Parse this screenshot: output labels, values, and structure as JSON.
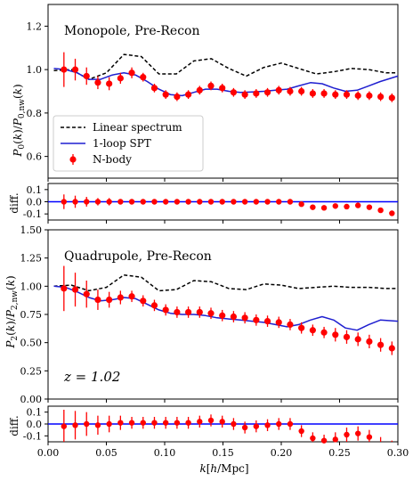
{
  "colors": {
    "linear": "#000000",
    "spt": "#1f1fd0",
    "nbody": "#ff0000",
    "zero_line": "#0000ff"
  },
  "x_label": "k[h/Mpc]",
  "x_ticks": [
    0.0,
    0.05,
    0.1,
    0.15,
    0.2,
    0.25,
    0.3
  ],
  "x_tick_labels": [
    "0.00",
    "0.05",
    "0.10",
    "0.15",
    "0.20",
    "0.25",
    "0.30"
  ],
  "legend": {
    "placement": "lower-left of monopole panel",
    "linear": "Linear spectrum",
    "spt": "1-loop SPT",
    "nbody": "N-body"
  },
  "chart_data": [
    {
      "type": "line",
      "title": "Monopole, Pre-Recon",
      "ylabel": "P_0(k)/P_0,nw(k)",
      "xlim": [
        0,
        0.3
      ],
      "ylim": [
        0.5,
        1.3
      ],
      "ytick_labels": [
        "0.6",
        "0.8",
        "1.0",
        "1.2"
      ],
      "yticks": [
        0.6,
        0.8,
        1.0,
        1.2
      ],
      "series": [
        {
          "name": "Linear spectrum",
          "x": [
            0.005,
            0.02,
            0.035,
            0.05,
            0.065,
            0.08,
            0.095,
            0.11,
            0.125,
            0.14,
            0.155,
            0.17,
            0.185,
            0.2,
            0.215,
            0.23,
            0.245,
            0.26,
            0.275,
            0.29,
            0.3
          ],
          "values": [
            0.995,
            1.0,
            0.955,
            0.985,
            1.07,
            1.06,
            0.98,
            0.98,
            1.04,
            1.05,
            1.005,
            0.97,
            1.01,
            1.03,
            1.005,
            0.98,
            0.99,
            1.005,
            1.0,
            0.985,
            0.985
          ]
        },
        {
          "name": "1-loop SPT",
          "x": [
            0.005,
            0.015,
            0.025,
            0.035,
            0.045,
            0.055,
            0.065,
            0.075,
            0.085,
            0.095,
            0.105,
            0.115,
            0.125,
            0.135,
            0.145,
            0.155,
            0.165,
            0.175,
            0.185,
            0.195,
            0.205,
            0.215,
            0.225,
            0.235,
            0.245,
            0.255,
            0.265,
            0.275,
            0.285,
            0.3
          ],
          "values": [
            1.005,
            1.0,
            0.985,
            0.955,
            0.955,
            0.975,
            0.985,
            0.975,
            0.945,
            0.91,
            0.885,
            0.88,
            0.895,
            0.91,
            0.91,
            0.9,
            0.895,
            0.897,
            0.9,
            0.905,
            0.91,
            0.925,
            0.94,
            0.935,
            0.915,
            0.9,
            0.905,
            0.925,
            0.945,
            0.97
          ]
        },
        {
          "name": "N-body",
          "x": [
            0.0136,
            0.0233,
            0.033,
            0.0427,
            0.0524,
            0.0621,
            0.0718,
            0.0815,
            0.0912,
            0.1009,
            0.1106,
            0.1203,
            0.13,
            0.1397,
            0.1494,
            0.1591,
            0.1688,
            0.1785,
            0.1882,
            0.1979,
            0.2076,
            0.2173,
            0.227,
            0.2367,
            0.2464,
            0.2561,
            0.2658,
            0.2755,
            0.2852,
            0.2949
          ],
          "values": [
            1.0,
            1.0,
            0.97,
            0.94,
            0.935,
            0.96,
            0.985,
            0.965,
            0.915,
            0.885,
            0.875,
            0.885,
            0.905,
            0.925,
            0.915,
            0.895,
            0.885,
            0.89,
            0.895,
            0.905,
            0.9,
            0.9,
            0.89,
            0.89,
            0.885,
            0.885,
            0.88,
            0.88,
            0.875,
            0.87
          ],
          "errors": [
            0.08,
            0.05,
            0.04,
            0.03,
            0.03,
            0.025,
            0.025,
            0.02,
            0.02,
            0.02,
            0.02,
            0.02,
            0.02,
            0.02,
            0.02,
            0.02,
            0.02,
            0.02,
            0.02,
            0.02,
            0.02,
            0.02,
            0.02,
            0.02,
            0.02,
            0.02,
            0.02,
            0.02,
            0.02,
            0.02
          ]
        }
      ]
    },
    {
      "type": "scatter",
      "title": "",
      "ylabel": "diff.",
      "xlim": [
        0,
        0.3
      ],
      "ylim": [
        -0.15,
        0.15
      ],
      "ytick_labels": [
        "-0.1",
        "0.0",
        "0.1"
      ],
      "yticks": [
        -0.1,
        0.0,
        0.1
      ],
      "x": [
        0.0136,
        0.0233,
        0.033,
        0.0427,
        0.0524,
        0.0621,
        0.0718,
        0.0815,
        0.0912,
        0.1009,
        0.1106,
        0.1203,
        0.13,
        0.1397,
        0.1494,
        0.1591,
        0.1688,
        0.1785,
        0.1882,
        0.1979,
        0.2076,
        0.2173,
        0.227,
        0.2367,
        0.2464,
        0.2561,
        0.2658,
        0.2755,
        0.2852,
        0.2949
      ],
      "values": [
        0.0,
        0.0,
        0.0,
        0.0,
        0.0,
        0.0,
        0.0,
        0.0,
        0.0,
        0.0,
        0.0,
        0.0,
        0.0,
        0.0,
        0.0,
        0.0,
        0.0,
        0.0,
        0.0,
        0.0,
        0.0,
        -0.02,
        -0.045,
        -0.05,
        -0.035,
        -0.04,
        -0.03,
        -0.045,
        -0.07,
        -0.095
      ],
      "errors": [
        0.06,
        0.05,
        0.04,
        0.03,
        0.03,
        0.02,
        0.02,
        0.02,
        0.02,
        0.02,
        0.02,
        0.02,
        0.02,
        0.02,
        0.02,
        0.02,
        0.02,
        0.02,
        0.02,
        0.02,
        0.02,
        0.02,
        0.02,
        0.02,
        0.02,
        0.02,
        0.02,
        0.02,
        0.02,
        0.02
      ]
    },
    {
      "type": "line",
      "title": "Quadrupole, Pre-Recon",
      "ylabel": "P_2(k)/P_2,nw(k)",
      "annotation": "z = 1.02",
      "xlim": [
        0,
        0.3
      ],
      "ylim": [
        0.0,
        1.5
      ],
      "ytick_labels": [
        "0.00",
        "0.25",
        "0.50",
        "0.75",
        "1.00",
        "1.25",
        "1.50"
      ],
      "yticks": [
        0.0,
        0.25,
        0.5,
        0.75,
        1.0,
        1.25,
        1.5
      ],
      "series": [
        {
          "name": "Linear spectrum",
          "x": [
            0.005,
            0.02,
            0.035,
            0.05,
            0.065,
            0.08,
            0.095,
            0.11,
            0.125,
            0.14,
            0.155,
            0.17,
            0.185,
            0.2,
            0.215,
            0.23,
            0.245,
            0.26,
            0.275,
            0.29,
            0.3
          ],
          "values": [
            1.0,
            1.01,
            0.96,
            0.99,
            1.1,
            1.08,
            0.96,
            0.97,
            1.05,
            1.04,
            0.98,
            0.97,
            1.02,
            1.01,
            0.98,
            0.99,
            1.0,
            0.99,
            0.99,
            0.98,
            0.98
          ]
        },
        {
          "name": "1-loop SPT",
          "x": [
            0.005,
            0.015,
            0.025,
            0.035,
            0.045,
            0.055,
            0.065,
            0.075,
            0.085,
            0.095,
            0.105,
            0.115,
            0.125,
            0.135,
            0.145,
            0.155,
            0.165,
            0.175,
            0.185,
            0.195,
            0.205,
            0.215,
            0.225,
            0.235,
            0.245,
            0.255,
            0.265,
            0.275,
            0.285,
            0.3
          ],
          "values": [
            1.0,
            0.99,
            0.95,
            0.9,
            0.87,
            0.88,
            0.9,
            0.89,
            0.84,
            0.79,
            0.76,
            0.75,
            0.75,
            0.74,
            0.72,
            0.71,
            0.7,
            0.69,
            0.68,
            0.66,
            0.64,
            0.66,
            0.7,
            0.73,
            0.7,
            0.63,
            0.61,
            0.66,
            0.7,
            0.69
          ]
        },
        {
          "name": "N-body",
          "x": [
            0.0136,
            0.0233,
            0.033,
            0.0427,
            0.0524,
            0.0621,
            0.0718,
            0.0815,
            0.0912,
            0.1009,
            0.1106,
            0.1203,
            0.13,
            0.1397,
            0.1494,
            0.1591,
            0.1688,
            0.1785,
            0.1882,
            0.1979,
            0.2076,
            0.2173,
            0.227,
            0.2367,
            0.2464,
            0.2561,
            0.2658,
            0.2755,
            0.2852,
            0.2949
          ],
          "values": [
            0.98,
            0.97,
            0.93,
            0.88,
            0.88,
            0.9,
            0.91,
            0.87,
            0.83,
            0.79,
            0.77,
            0.77,
            0.77,
            0.76,
            0.74,
            0.73,
            0.72,
            0.7,
            0.69,
            0.68,
            0.66,
            0.63,
            0.61,
            0.59,
            0.57,
            0.55,
            0.53,
            0.51,
            0.48,
            0.45
          ],
          "errors": [
            0.2,
            0.15,
            0.12,
            0.09,
            0.07,
            0.06,
            0.05,
            0.05,
            0.05,
            0.05,
            0.05,
            0.05,
            0.05,
            0.05,
            0.05,
            0.05,
            0.05,
            0.05,
            0.05,
            0.05,
            0.05,
            0.05,
            0.05,
            0.05,
            0.06,
            0.06,
            0.06,
            0.06,
            0.06,
            0.06
          ]
        }
      ]
    },
    {
      "type": "scatter",
      "title": "",
      "ylabel": "diff.",
      "xlim": [
        0,
        0.3
      ],
      "ylim": [
        -0.15,
        0.15
      ],
      "ytick_labels": [
        "-0.1",
        "0.0",
        "0.1"
      ],
      "yticks": [
        -0.1,
        0.0,
        0.1
      ],
      "x": [
        0.0136,
        0.0233,
        0.033,
        0.0427,
        0.0524,
        0.0621,
        0.0718,
        0.0815,
        0.0912,
        0.1009,
        0.1106,
        0.1203,
        0.13,
        0.1397,
        0.1494,
        0.1591,
        0.1688,
        0.1785,
        0.1882,
        0.1979,
        0.2076,
        0.2173,
        0.227,
        0.2367,
        0.2464,
        0.2561,
        0.2658,
        0.2755,
        0.2852,
        0.2949
      ],
      "values": [
        -0.02,
        -0.01,
        0.0,
        -0.01,
        0.0,
        0.01,
        0.01,
        0.01,
        0.01,
        0.01,
        0.01,
        0.01,
        0.02,
        0.03,
        0.02,
        0.0,
        -0.03,
        -0.02,
        -0.01,
        0.0,
        0.0,
        -0.06,
        -0.12,
        -0.14,
        -0.13,
        -0.09,
        -0.08,
        -0.11,
        -0.17,
        -0.2
      ],
      "errors": [
        0.14,
        0.12,
        0.1,
        0.08,
        0.07,
        0.06,
        0.05,
        0.05,
        0.05,
        0.05,
        0.05,
        0.05,
        0.05,
        0.05,
        0.05,
        0.05,
        0.05,
        0.05,
        0.05,
        0.05,
        0.05,
        0.05,
        0.05,
        0.05,
        0.06,
        0.06,
        0.06,
        0.06,
        0.06,
        0.06
      ]
    }
  ]
}
